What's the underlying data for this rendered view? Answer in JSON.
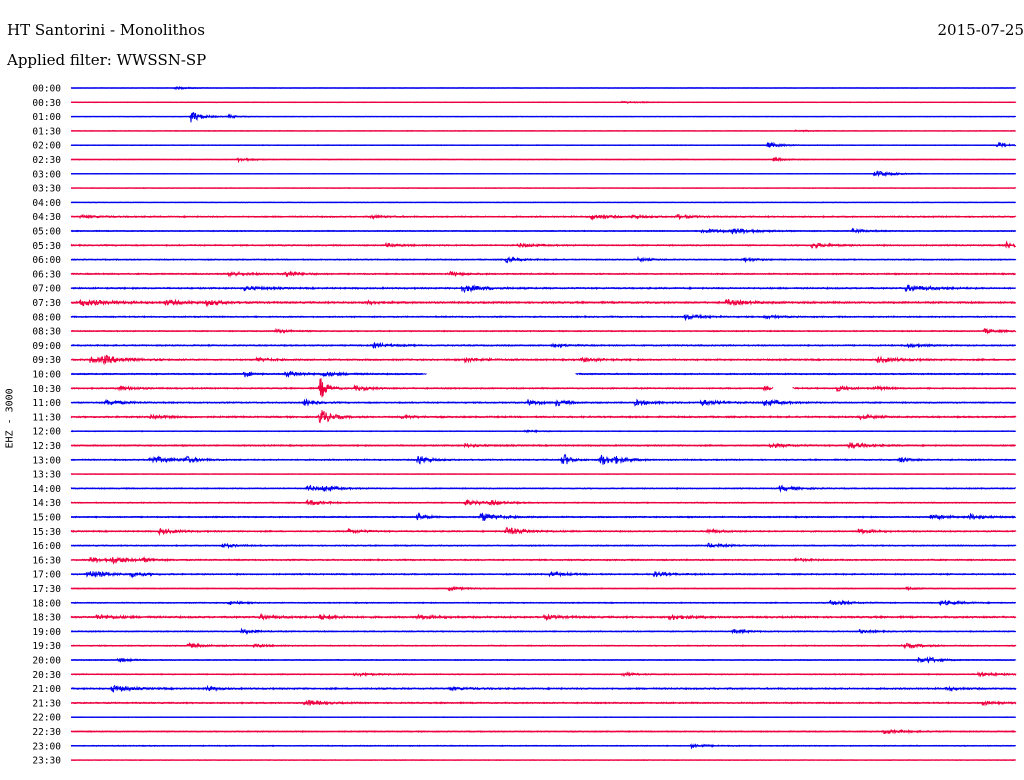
{
  "header": {
    "station": "HT Santorini - Monolithos",
    "date": "2015-07-25",
    "filter_label": "Applied filter:",
    "filter_value": "WWSSN-SP"
  },
  "channel_label": "EHZ - 3000",
  "colors": {
    "odd_trace": "#0000ee",
    "even_trace": "#ee0040",
    "background": "#ffffff"
  },
  "chart_data": {
    "type": "line",
    "title": "HT Santorini - Monolithos",
    "ylabel": "EHZ - 3000",
    "xlabel": "",
    "x_unit": "minutes",
    "xlim": [
      0,
      30
    ],
    "grid": false,
    "legend": "none",
    "rows": [
      {
        "label": "00:00",
        "color": "blue",
        "noise": 0.25,
        "events": [
          [
            3.3,
            1.2,
            0.4
          ]
        ]
      },
      {
        "label": "00:30",
        "color": "red",
        "noise": 0.3,
        "events": [
          [
            17.5,
            1.0,
            0.4
          ]
        ]
      },
      {
        "label": "01:00",
        "color": "blue",
        "noise": 0.25,
        "events": [
          [
            3.8,
            6.0,
            0.3
          ],
          [
            5.0,
            1.5,
            0.3
          ]
        ]
      },
      {
        "label": "01:30",
        "color": "red",
        "noise": 0.3,
        "events": [
          [
            23.0,
            0.8,
            0.4
          ]
        ]
      },
      {
        "label": "02:00",
        "color": "blue",
        "noise": 0.35,
        "events": [
          [
            22.1,
            2.5,
            0.4
          ],
          [
            29.4,
            3.5,
            0.2
          ]
        ]
      },
      {
        "label": "02:30",
        "color": "red",
        "noise": 0.3,
        "events": [
          [
            5.3,
            2.0,
            0.4
          ],
          [
            22.3,
            1.5,
            0.4
          ]
        ]
      },
      {
        "label": "03:00",
        "color": "blue",
        "noise": 0.25,
        "events": [
          [
            25.5,
            3.0,
            0.5
          ]
        ]
      },
      {
        "label": "03:30",
        "color": "red",
        "noise": 0.3,
        "events": []
      },
      {
        "label": "04:00",
        "color": "blue",
        "noise": 0.3,
        "events": []
      },
      {
        "label": "04:30",
        "color": "red",
        "noise": 0.6,
        "events": [
          [
            0.3,
            1.5,
            0.5
          ],
          [
            9.5,
            1.5,
            0.4
          ],
          [
            16.5,
            2.5,
            0.5
          ],
          [
            17.8,
            1.5,
            0.4
          ],
          [
            19.2,
            2.0,
            0.4
          ]
        ]
      },
      {
        "label": "05:00",
        "color": "blue",
        "noise": 0.45,
        "events": [
          [
            20.0,
            2.0,
            0.8
          ],
          [
            21.0,
            2.5,
            0.6
          ],
          [
            24.8,
            2.0,
            0.4
          ]
        ]
      },
      {
        "label": "05:30",
        "color": "red",
        "noise": 0.6,
        "events": [
          [
            10.0,
            1.5,
            0.5
          ],
          [
            14.2,
            2.0,
            0.5
          ],
          [
            23.5,
            2.5,
            0.5
          ],
          [
            29.7,
            3.0,
            0.3
          ]
        ]
      },
      {
        "label": "06:00",
        "color": "blue",
        "noise": 0.5,
        "events": [
          [
            13.8,
            2.5,
            0.4
          ],
          [
            18.0,
            1.5,
            0.4
          ],
          [
            21.3,
            2.0,
            0.4
          ]
        ]
      },
      {
        "label": "06:30",
        "color": "red",
        "noise": 0.6,
        "events": [
          [
            5.0,
            2.0,
            0.6
          ],
          [
            6.8,
            3.0,
            0.4
          ],
          [
            12.0,
            2.0,
            0.4
          ]
        ]
      },
      {
        "label": "07:00",
        "color": "blue",
        "noise": 0.7,
        "events": [
          [
            12.4,
            3.5,
            0.6
          ],
          [
            5.5,
            2.0,
            0.5
          ],
          [
            26.5,
            3.0,
            0.7
          ]
        ]
      },
      {
        "label": "07:30",
        "color": "red",
        "noise": 0.8,
        "events": [
          [
            0.3,
            3.0,
            0.8
          ],
          [
            3.0,
            2.0,
            0.6
          ],
          [
            4.3,
            2.5,
            0.4
          ],
          [
            9.4,
            1.5,
            0.4
          ],
          [
            20.8,
            2.5,
            0.6
          ]
        ]
      },
      {
        "label": "08:00",
        "color": "blue",
        "noise": 0.6,
        "events": [
          [
            19.5,
            2.5,
            0.5
          ],
          [
            22.0,
            1.5,
            0.4
          ]
        ]
      },
      {
        "label": "08:30",
        "color": "red",
        "noise": 0.5,
        "events": [
          [
            29.0,
            2.0,
            0.4
          ],
          [
            6.5,
            1.5,
            0.5
          ]
        ]
      },
      {
        "label": "09:00",
        "color": "blue",
        "noise": 0.6,
        "events": [
          [
            9.6,
            2.0,
            0.5
          ],
          [
            15.3,
            1.5,
            0.4
          ],
          [
            26.5,
            2.0,
            0.4
          ]
        ]
      },
      {
        "label": "09:30",
        "color": "red",
        "noise": 0.7,
        "events": [
          [
            0.6,
            2.5,
            0.6
          ],
          [
            1.0,
            3.0,
            0.6
          ],
          [
            5.9,
            2.5,
            0.3
          ],
          [
            12.5,
            2.0,
            0.5
          ],
          [
            16.2,
            2.0,
            0.5
          ],
          [
            25.6,
            2.5,
            0.6
          ]
        ]
      },
      {
        "label": "10:00",
        "color": "blue",
        "noise": 0.6,
        "events": [
          [
            5.5,
            3.5,
            0.2
          ],
          [
            6.8,
            2.5,
            0.6
          ],
          [
            8.0,
            2.0,
            0.5
          ]
        ],
        "gaps": [
          [
            11.3,
            16.0
          ]
        ]
      },
      {
        "label": "10:30",
        "color": "red",
        "noise": 0.6,
        "events": [
          [
            1.5,
            2.0,
            0.5
          ],
          [
            7.9,
            12.0,
            0.2
          ],
          [
            9.0,
            2.0,
            0.5
          ],
          [
            22.0,
            1.5,
            0.4
          ],
          [
            24.3,
            3.0,
            0.3
          ],
          [
            25.5,
            1.5,
            0.4
          ]
        ],
        "gaps": [
          [
            22.3,
            22.9
          ]
        ]
      },
      {
        "label": "11:00",
        "color": "blue",
        "noise": 0.6,
        "events": [
          [
            1.1,
            2.5,
            0.5
          ],
          [
            7.4,
            3.0,
            0.3
          ],
          [
            14.5,
            3.0,
            0.3
          ],
          [
            15.4,
            3.0,
            0.3
          ],
          [
            17.9,
            2.5,
            0.5
          ],
          [
            20.0,
            2.5,
            0.6
          ],
          [
            22.0,
            3.0,
            0.5
          ]
        ]
      },
      {
        "label": "11:30",
        "color": "red",
        "noise": 0.7,
        "events": [
          [
            2.5,
            2.0,
            0.5
          ],
          [
            7.9,
            9.0,
            0.3
          ],
          [
            10.5,
            1.5,
            0.4
          ],
          [
            25.0,
            2.0,
            0.5
          ]
        ]
      },
      {
        "label": "12:00",
        "color": "blue",
        "noise": 0.4,
        "events": [
          [
            14.4,
            1.0,
            0.4
          ]
        ]
      },
      {
        "label": "12:30",
        "color": "red",
        "noise": 0.6,
        "events": [
          [
            22.2,
            2.0,
            0.5
          ],
          [
            24.7,
            3.0,
            0.5
          ],
          [
            12.5,
            1.5,
            0.5
          ]
        ]
      },
      {
        "label": "13:00",
        "color": "blue",
        "noise": 0.6,
        "events": [
          [
            2.5,
            3.5,
            0.6
          ],
          [
            3.6,
            3.5,
            0.3
          ],
          [
            11.0,
            5.0,
            0.3
          ],
          [
            15.6,
            8.0,
            0.2
          ],
          [
            16.8,
            6.0,
            0.3
          ],
          [
            17.2,
            3.0,
            0.4
          ],
          [
            26.3,
            3.0,
            0.3
          ]
        ]
      },
      {
        "label": "13:30",
        "color": "red",
        "noise": 0.3,
        "events": []
      },
      {
        "label": "14:00",
        "color": "blue",
        "noise": 0.5,
        "events": [
          [
            7.5,
            3.0,
            0.4
          ],
          [
            8.0,
            2.5,
            0.4
          ],
          [
            22.5,
            2.5,
            0.5
          ]
        ]
      },
      {
        "label": "14:30",
        "color": "red",
        "noise": 0.5,
        "events": [
          [
            7.5,
            3.0,
            0.4
          ],
          [
            12.5,
            2.5,
            0.5
          ],
          [
            13.3,
            2.0,
            0.4
          ]
        ]
      },
      {
        "label": "15:00",
        "color": "blue",
        "noise": 0.6,
        "events": [
          [
            11.0,
            3.0,
            0.3
          ],
          [
            13.0,
            4.5,
            0.5
          ],
          [
            27.3,
            2.5,
            0.4
          ],
          [
            28.5,
            3.0,
            0.4
          ]
        ]
      },
      {
        "label": "15:30",
        "color": "red",
        "noise": 0.6,
        "events": [
          [
            2.8,
            2.5,
            0.5
          ],
          [
            8.8,
            2.0,
            0.4
          ],
          [
            13.8,
            3.5,
            0.6
          ],
          [
            20.2,
            2.0,
            0.4
          ],
          [
            25.0,
            2.5,
            0.4
          ]
        ]
      },
      {
        "label": "16:00",
        "color": "blue",
        "noise": 0.5,
        "events": [
          [
            4.8,
            2.0,
            0.4
          ],
          [
            20.2,
            2.0,
            0.5
          ]
        ]
      },
      {
        "label": "16:30",
        "color": "red",
        "noise": 0.6,
        "events": [
          [
            0.6,
            2.5,
            0.5
          ],
          [
            1.3,
            3.0,
            0.5
          ],
          [
            2.3,
            1.5,
            0.3
          ],
          [
            23.0,
            1.5,
            0.4
          ]
        ]
      },
      {
        "label": "17:00",
        "color": "blue",
        "noise": 0.6,
        "events": [
          [
            0.5,
            3.5,
            0.6
          ],
          [
            1.9,
            2.0,
            0.4
          ],
          [
            15.2,
            2.0,
            0.5
          ],
          [
            18.5,
            2.5,
            0.4
          ]
        ]
      },
      {
        "label": "17:30",
        "color": "red",
        "noise": 0.4,
        "events": [
          [
            12.0,
            2.0,
            0.4
          ],
          [
            26.5,
            1.5,
            0.3
          ]
        ]
      },
      {
        "label": "18:00",
        "color": "blue",
        "noise": 0.5,
        "events": [
          [
            5.0,
            2.0,
            0.3
          ],
          [
            24.1,
            2.5,
            0.5
          ],
          [
            27.6,
            2.5,
            0.5
          ]
        ]
      },
      {
        "label": "18:30",
        "color": "red",
        "noise": 0.8,
        "events": [
          [
            0.8,
            2.0,
            0.6
          ],
          [
            6.0,
            2.0,
            0.5
          ],
          [
            7.9,
            2.0,
            0.5
          ],
          [
            11.0,
            2.0,
            0.5
          ],
          [
            15.0,
            2.0,
            0.5
          ],
          [
            19.0,
            2.5,
            0.5
          ]
        ]
      },
      {
        "label": "19:00",
        "color": "blue",
        "noise": 0.5,
        "events": [
          [
            5.4,
            2.0,
            0.4
          ],
          [
            21.0,
            2.0,
            0.4
          ],
          [
            25.0,
            1.5,
            0.4
          ]
        ]
      },
      {
        "label": "19:30",
        "color": "red",
        "noise": 0.5,
        "events": [
          [
            3.7,
            2.0,
            0.5
          ],
          [
            5.8,
            1.5,
            0.4
          ],
          [
            26.4,
            2.5,
            0.5
          ]
        ]
      },
      {
        "label": "20:00",
        "color": "blue",
        "noise": 0.4,
        "events": [
          [
            1.5,
            2.5,
            0.3
          ],
          [
            26.9,
            3.0,
            0.3
          ],
          [
            27.2,
            2.0,
            0.4
          ]
        ]
      },
      {
        "label": "20:30",
        "color": "red",
        "noise": 0.5,
        "events": [
          [
            9.0,
            1.5,
            0.5
          ],
          [
            17.5,
            1.5,
            0.4
          ],
          [
            28.8,
            2.0,
            0.5
          ]
        ]
      },
      {
        "label": "21:00",
        "color": "blue",
        "noise": 0.7,
        "events": [
          [
            1.3,
            3.0,
            0.5
          ],
          [
            4.3,
            2.0,
            0.3
          ],
          [
            12.0,
            1.5,
            0.5
          ],
          [
            27.8,
            1.5,
            0.4
          ]
        ]
      },
      {
        "label": "21:30",
        "color": "red",
        "noise": 0.6,
        "events": [
          [
            7.4,
            3.0,
            0.5
          ],
          [
            28.9,
            2.0,
            0.4
          ]
        ]
      },
      {
        "label": "22:00",
        "color": "blue",
        "noise": 0.3,
        "events": []
      },
      {
        "label": "22:30",
        "color": "red",
        "noise": 0.5,
        "events": [
          [
            25.8,
            2.0,
            0.6
          ]
        ]
      },
      {
        "label": "23:00",
        "color": "blue",
        "noise": 0.45,
        "events": [
          [
            19.7,
            2.0,
            0.4
          ]
        ]
      },
      {
        "label": "23:30",
        "color": "red",
        "noise": 0.3,
        "events": []
      }
    ]
  }
}
